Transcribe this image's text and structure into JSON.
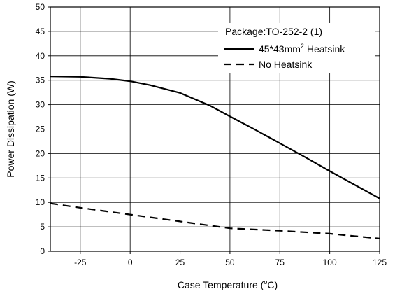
{
  "chart_data": {
    "type": "line",
    "title": "",
    "xlabel": "Case Temperature (",
    "xlabel_unit_deg": "o",
    "xlabel_unit_tail": "C)",
    "ylabel": "Power Dissipation (W)",
    "xlim": [
      -40,
      125
    ],
    "ylim": [
      0,
      50
    ],
    "grid": true,
    "x_ticks": [
      -25,
      0,
      25,
      50,
      75,
      100,
      125
    ],
    "x_tick_labels": [
      "-25",
      "0",
      "25",
      "50",
      "75",
      "100",
      "125"
    ],
    "y_ticks": [
      0,
      5,
      10,
      15,
      20,
      25,
      30,
      35,
      40,
      45,
      50
    ],
    "y_tick_labels": [
      "0",
      "5",
      "10",
      "15",
      "20",
      "25",
      "30",
      "35",
      "40",
      "45",
      "50"
    ],
    "legend": {
      "placement": "top-right",
      "heading": "Package:TO-252-2 (1)"
    },
    "series": [
      {
        "name": "45*43mm",
        "name_superscript": "2",
        "name_suffix": " Heatsink",
        "style": "solid",
        "color": "#000000",
        "x": [
          -40,
          -25,
          -10,
          0,
          10,
          25,
          40,
          50,
          62.5,
          75,
          87.5,
          100,
          112.5,
          125
        ],
        "y": [
          35.8,
          35.7,
          35.3,
          34.8,
          34.0,
          32.4,
          29.8,
          27.6,
          24.9,
          22.1,
          19.3,
          16.4,
          13.6,
          10.8
        ]
      },
      {
        "name": "No Heatsink",
        "style": "dashed",
        "color": "#000000",
        "x": [
          -40,
          -25,
          0,
          25,
          50,
          75,
          100,
          125
        ],
        "y": [
          9.8,
          8.9,
          7.5,
          6.1,
          4.7,
          4.2,
          3.6,
          2.6
        ]
      }
    ]
  }
}
